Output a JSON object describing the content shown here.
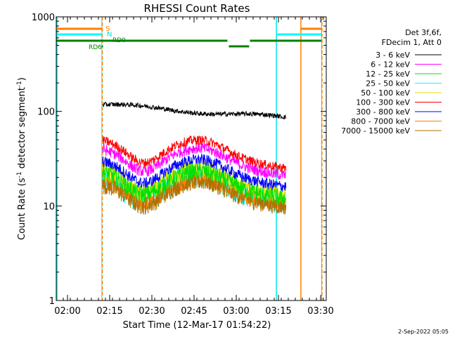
{
  "footer": {
    "date": "2-Sep-2022 05:05"
  },
  "chart_data": {
    "type": "line",
    "title": "RHESSI Count Rates",
    "xlabel": "Start Time (12-Mar-17 01:54:22)",
    "ylabel_main": "Count Rate (s",
    "ylabel_sup1": "-1",
    "ylabel_mid": " detector segment",
    "ylabel_sup2": "-1",
    "ylabel_end": ")",
    "y_scale": "log",
    "ylim": [
      1,
      1000
    ],
    "xlim_minutes": [
      1.63,
      97.63
    ],
    "x_ticks": [
      {
        "label": "02:00",
        "minutes": 5.63
      },
      {
        "label": "02:15",
        "minutes": 20.63
      },
      {
        "label": "02:30",
        "minutes": 35.63
      },
      {
        "label": "02:45",
        "minutes": 50.63
      },
      {
        "label": "03:00",
        "minutes": 65.63
      },
      {
        "label": "03:15",
        "minutes": 80.63
      },
      {
        "label": "03:30",
        "minutes": 95.63
      }
    ],
    "y_ticks": [
      {
        "label": "1",
        "value": 1
      },
      {
        "label": "10",
        "value": 10
      },
      {
        "label": "100",
        "value": 100
      },
      {
        "label": "1000",
        "value": 1000
      }
    ],
    "legend": {
      "position": "right",
      "header": [
        "Det 3f,6f,",
        "FDecim 1, Att 0"
      ]
    },
    "series": [
      {
        "name": "3 - 6 keV",
        "color": "#000000",
        "start_value": 118,
        "end_value": 85
      },
      {
        "name": "6 - 12 keV",
        "color": "#ff00ff",
        "start_value": 40,
        "end_value": 21
      },
      {
        "name": "12 - 25 keV",
        "color": "#00e000",
        "start_value": 23,
        "end_value": 12
      },
      {
        "name": "25 - 50 keV",
        "color": "#00ffff",
        "start_value": 19,
        "end_value": 11
      },
      {
        "name": "50 - 100 keV",
        "color": "#e0e000",
        "start_value": 24,
        "end_value": 13
      },
      {
        "name": "100 - 300 keV",
        "color": "#ff0000",
        "start_value": 50,
        "end_value": 25
      },
      {
        "name": "300 - 800 keV",
        "color": "#0000ff",
        "start_value": 30,
        "end_value": 16
      },
      {
        "name": "800 - 7000 keV",
        "color": "#ff8000",
        "start_value": 18,
        "end_value": 10
      },
      {
        "name": "7000 - 15000 keV",
        "color": "#b07000",
        "start_value": 17,
        "end_value": 10
      }
    ],
    "flags": [
      {
        "label": "S",
        "color": "#ff8000"
      },
      {
        "label": "N",
        "color": "#00ffff"
      },
      {
        "label": "RD0",
        "color": "#008000"
      },
      {
        "label": "RD6",
        "color": "#008000"
      }
    ]
  }
}
